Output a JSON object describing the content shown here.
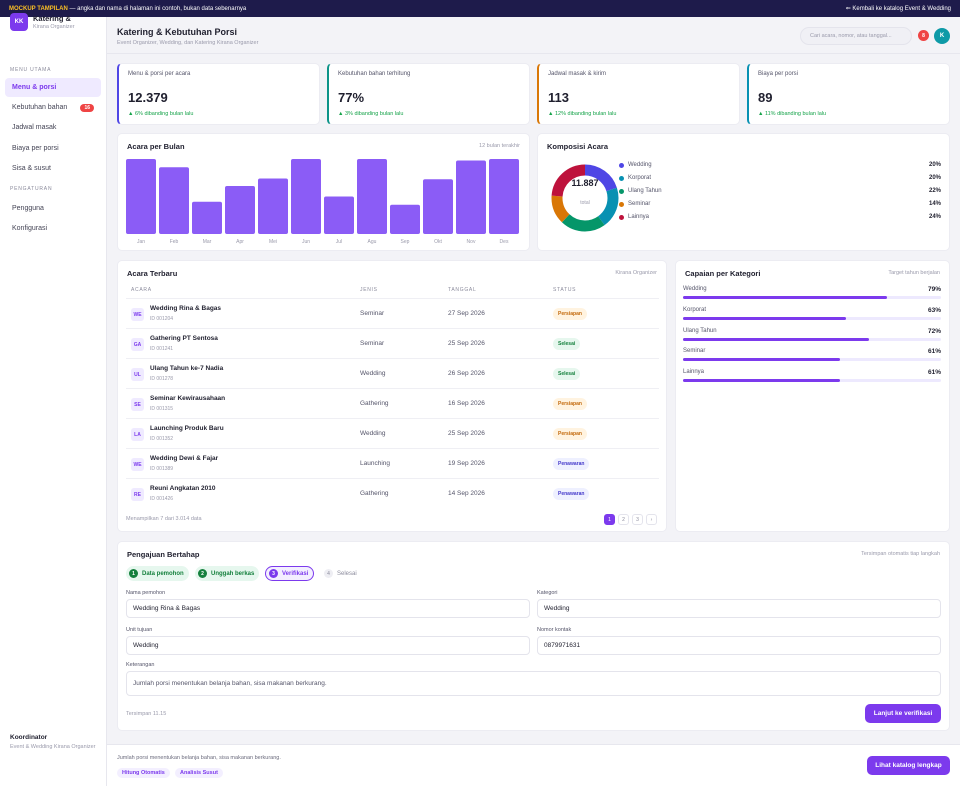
{
  "topbar": {
    "strong": "MOCKUP TAMPILAN",
    "text": "— angka dan nama di halaman ini contoh, bukan data sebenarnya",
    "back": "⇐ Kembali ke katalog Event & Wedding"
  },
  "sidebar": {
    "logo": "KK",
    "brand": "Katering &",
    "brand_sub": "Kirana Organizer",
    "section_main": "MENU UTAMA",
    "items": [
      {
        "label": "Menu & porsi"
      },
      {
        "label": "Kebutuhan bahan",
        "badge": "16"
      },
      {
        "label": "Jadwal masak"
      },
      {
        "label": "Biaya per porsi"
      },
      {
        "label": "Sisa & susut"
      }
    ],
    "section_settings": "PENGATURAN",
    "settings": [
      {
        "label": "Pengguna"
      },
      {
        "label": "Konfigurasi"
      }
    ],
    "footer_title": "Koordinator",
    "footer_sub": "Event & Wedding Kirana Organizer"
  },
  "header": {
    "title": "Katering & Kebutuhan Porsi",
    "subtitle": "Event Organizer, Wedding, dan Katering Kirana Organizer",
    "search_placeholder": "Cari acara, nomor, atau tanggal...",
    "notif_count": "8",
    "avatar": "K"
  },
  "stats": [
    {
      "label": "Menu & porsi per acara",
      "value": "12.379",
      "delta": "▲ 6% dibanding bulan lalu",
      "accent": "#4f46e5"
    },
    {
      "label": "Kebutuhan bahan terhitung",
      "value": "77%",
      "delta": "▲ 3% dibanding bulan lalu",
      "accent": "#0d9488"
    },
    {
      "label": "Jadwal masak & kirim",
      "value": "113",
      "delta": "▲ 12% dibanding bulan lalu",
      "accent": "#d97706"
    },
    {
      "label": "Biaya per porsi",
      "value": "89",
      "delta": "▲ 11% dibanding bulan lalu",
      "accent": "#0891b2"
    }
  ],
  "monthly": {
    "title": "Acara per Bulan",
    "note": "12 bulan terakhir"
  },
  "composition": {
    "title": "Komposisi Acara",
    "total": "11.887",
    "total_label": "total"
  },
  "chart_data": [
    {
      "type": "bar",
      "title": "Acara per Bulan",
      "categories": [
        "Jan",
        "Feb",
        "Mar",
        "Apr",
        "Mei",
        "Jun",
        "Jul",
        "Agu",
        "Sep",
        "Okt",
        "Nov",
        "Des"
      ],
      "values": [
        100,
        89,
        43,
        64,
        74,
        100,
        50,
        100,
        39,
        73,
        98,
        100
      ],
      "color": "#8b5cf6"
    },
    {
      "type": "pie",
      "title": "Komposisi Acara",
      "labels": [
        "Wedding",
        "Korporat",
        "Ulang Tahun",
        "Seminar",
        "Lainnya"
      ],
      "values": [
        20,
        20,
        22,
        14,
        24
      ],
      "colors": [
        "#4f46e5",
        "#0891b2",
        "#059669",
        "#d97706",
        "#be123c"
      ]
    }
  ],
  "recent": {
    "title": "Acara Terbaru",
    "note": "Kirana Organizer",
    "columns": [
      "ACARA",
      "JENIS",
      "TANGGAL",
      "STATUS"
    ],
    "rows": [
      {
        "ini": "WE",
        "name": "Wedding Rina & Bagas",
        "id": "ID 001204",
        "jenis": "Seminar",
        "tanggal": "27 Sep 2026",
        "status": "Persiapan"
      },
      {
        "ini": "GA",
        "name": "Gathering PT Sentosa",
        "id": "ID 001241",
        "jenis": "Seminar",
        "tanggal": "25 Sep 2026",
        "status": "Selesai"
      },
      {
        "ini": "UL",
        "name": "Ulang Tahun ke-7 Nadia",
        "id": "ID 001278",
        "jenis": "Wedding",
        "tanggal": "26 Sep 2026",
        "status": "Selesai"
      },
      {
        "ini": "SE",
        "name": "Seminar Kewirausahaan",
        "id": "ID 001315",
        "jenis": "Gathering",
        "tanggal": "16 Sep 2026",
        "status": "Persiapan"
      },
      {
        "ini": "LA",
        "name": "Launching Produk Baru",
        "id": "ID 001352",
        "jenis": "Wedding",
        "tanggal": "25 Sep 2026",
        "status": "Persiapan"
      },
      {
        "ini": "WE",
        "name": "Wedding Dewi & Fajar",
        "id": "ID 001389",
        "jenis": "Launching",
        "tanggal": "19 Sep 2026",
        "status": "Penawaran"
      },
      {
        "ini": "RE",
        "name": "Reuni Angkatan 2010",
        "id": "ID 001426",
        "jenis": "Gathering",
        "tanggal": "14 Sep 2026",
        "status": "Penawaran"
      }
    ],
    "showing": "Menampilkan 7 dari 3.014 data",
    "pages": [
      "1",
      "2",
      "3",
      "›"
    ]
  },
  "achievement": {
    "title": "Capaian per Kategori",
    "note": "Target tahun berjalan",
    "items": [
      {
        "label": "Wedding",
        "value": 79,
        "text": "79%"
      },
      {
        "label": "Korporat",
        "value": 63,
        "text": "63%"
      },
      {
        "label": "Ulang Tahun",
        "value": 72,
        "text": "72%"
      },
      {
        "label": "Seminar",
        "value": 61,
        "text": "61%"
      },
      {
        "label": "Lainnya",
        "value": 61,
        "text": "61%"
      }
    ]
  },
  "form": {
    "title": "Pengajuan Bertahap",
    "note": "Tersimpan otomatis tiap langkah",
    "steps": [
      {
        "n": "1",
        "label": "Data pemohon"
      },
      {
        "n": "2",
        "label": "Unggah berkas"
      },
      {
        "n": "3",
        "label": "Verifikasi"
      },
      {
        "n": "4",
        "label": "Selesai"
      }
    ],
    "nama_label": "Nama pemohon",
    "nama_value": "Wedding Rina & Bagas",
    "kategori_label": "Kategori",
    "kategori_value": "Wedding",
    "unit_label": "Unit tujuan",
    "unit_value": "Wedding",
    "kontak_label": "Nomor kontak",
    "kontak_value": "0879971631",
    "ket_label": "Keterangan",
    "ket_value": "Jumlah porsi menentukan belanja bahan, sisa makanan berkurang.",
    "saved": "Tersimpan 11.15",
    "submit": "Lanjut ke verifikasi"
  },
  "footer": {
    "text": "Jumlah porsi menentukan belanja bahan, sisa makanan berkurang.",
    "tags": [
      "Hitung Otomatis",
      "Analisis Susut"
    ],
    "button": "Lihat katalog lengkap"
  }
}
